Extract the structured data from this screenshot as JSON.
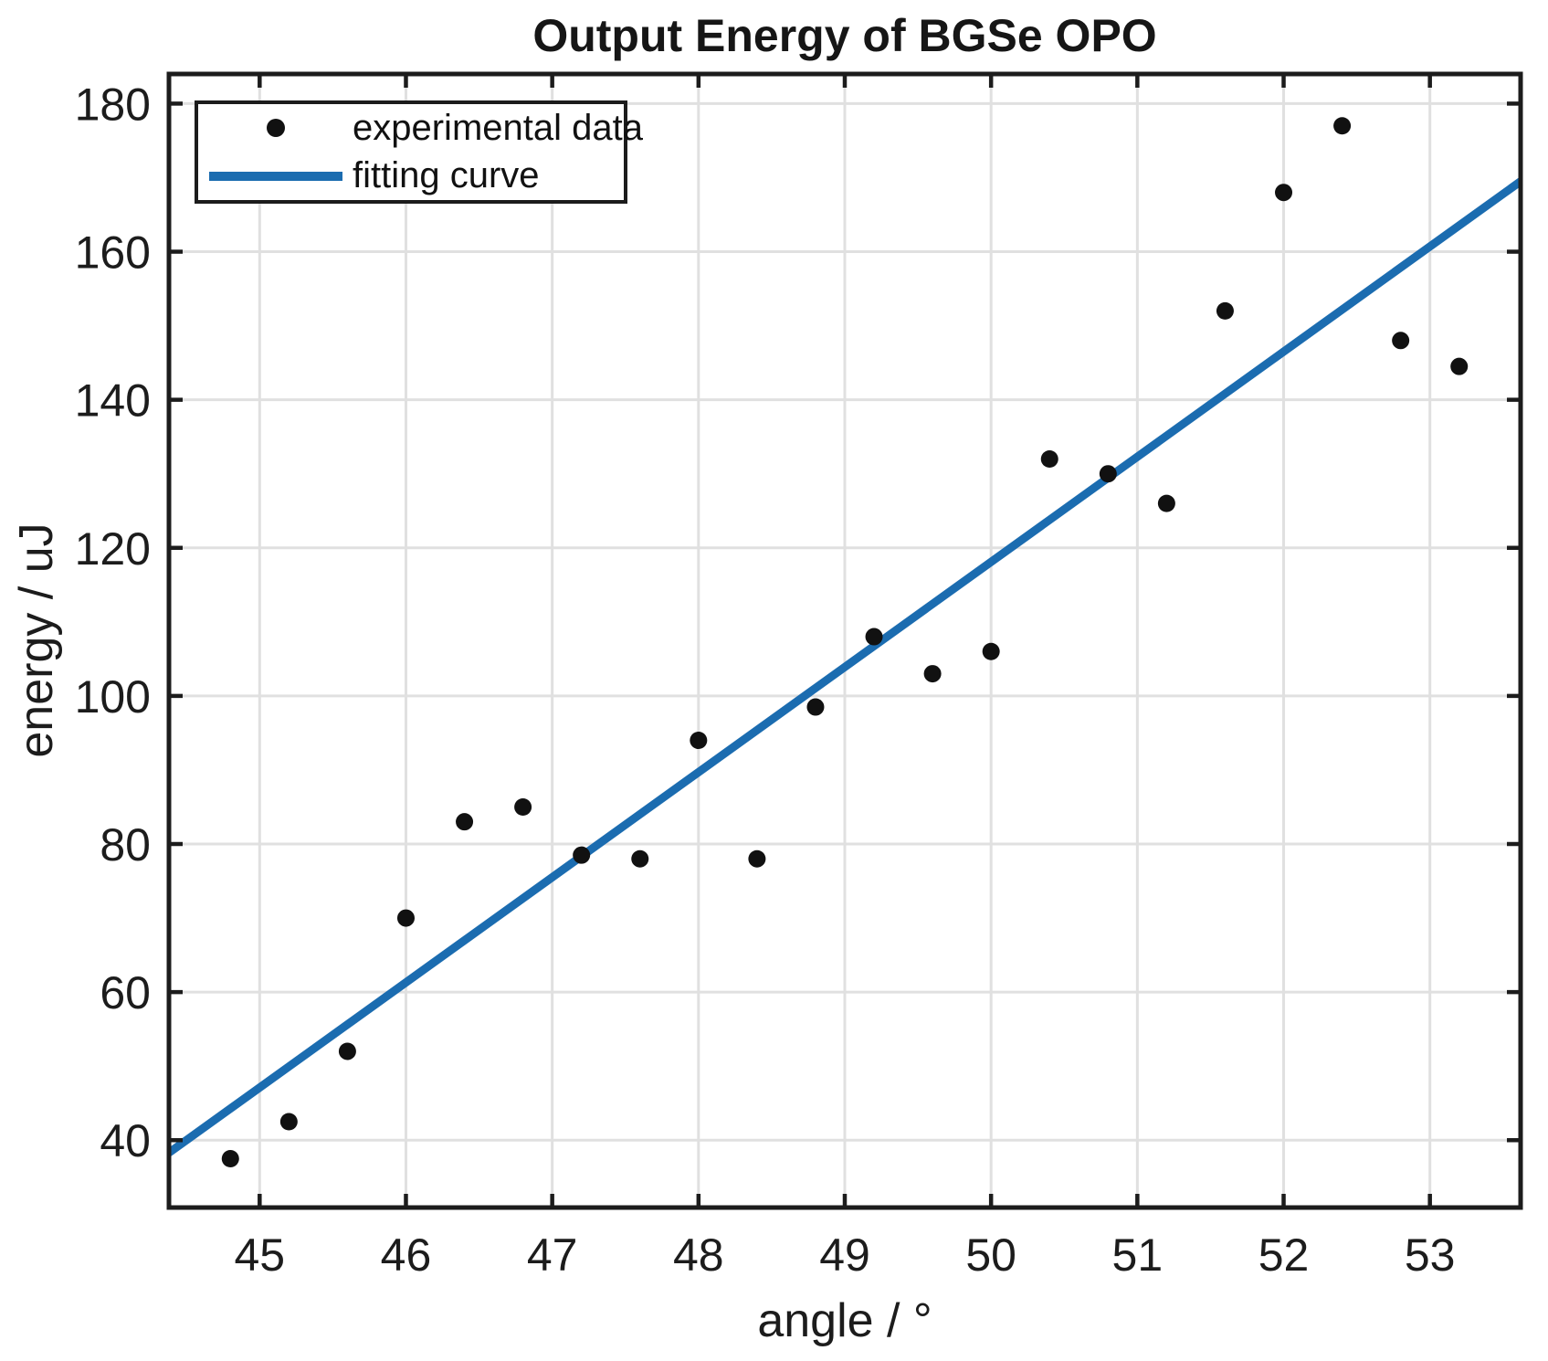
{
  "chart_data": {
    "type": "scatter",
    "title": "Output Energy of BGSe OPO",
    "xlabel": "angle / °",
    "ylabel": "energy / uJ",
    "xlim": [
      44.38,
      53.62
    ],
    "ylim": [
      30.9,
      184.0
    ],
    "xticks": [
      45,
      46,
      47,
      48,
      49,
      50,
      51,
      52,
      53
    ],
    "yticks": [
      40,
      60,
      80,
      100,
      120,
      140,
      160,
      180
    ],
    "grid": true,
    "legend": {
      "position": "top-left",
      "entries": [
        {
          "label": "experimental data",
          "marker": "dot",
          "color": "#111111"
        },
        {
          "label": "fitting curve",
          "marker": "line",
          "color": "#1b6cb0"
        }
      ]
    },
    "series": [
      {
        "name": "experimental data",
        "type": "scatter",
        "color": "#111111",
        "x": [
          44.8,
          45.2,
          45.6,
          46.0,
          46.4,
          46.8,
          47.2,
          47.6,
          48.0,
          48.4,
          48.8,
          49.2,
          49.6,
          50.0,
          50.4,
          50.8,
          51.2,
          51.6,
          52.0,
          52.4,
          52.8,
          53.2
        ],
        "y": [
          37.5,
          42.5,
          52.0,
          70.0,
          83.0,
          85.0,
          78.5,
          78.0,
          94.0,
          78.0,
          98.5,
          108.0,
          103.0,
          106.0,
          132.0,
          130.0,
          126.0,
          152.0,
          168.0,
          177.0,
          148.0,
          144.5
        ]
      },
      {
        "name": "fitting curve",
        "type": "line",
        "color": "#1b6cb0",
        "x": [
          44.38,
          53.62
        ],
        "y": [
          38.3,
          169.5
        ]
      }
    ],
    "style": {
      "grid_color": "#e0e0e0",
      "axis_color": "#1c1c1c",
      "tick_label_color": "#1c1c1c",
      "background": "#ffffff"
    }
  }
}
